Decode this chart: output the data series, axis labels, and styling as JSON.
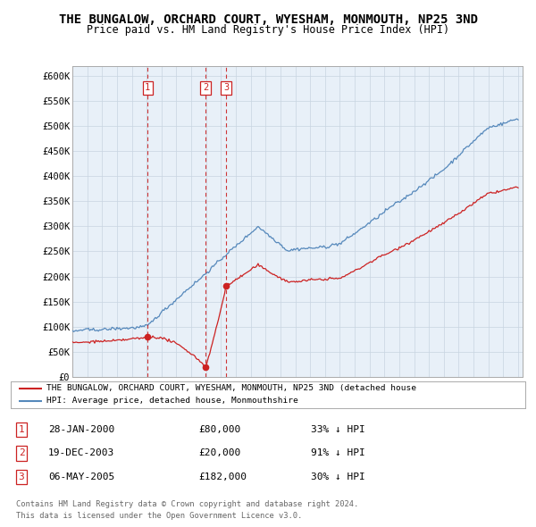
{
  "title": "THE BUNGALOW, ORCHARD COURT, WYESHAM, MONMOUTH, NP25 3ND",
  "subtitle": "Price paid vs. HM Land Registry's House Price Index (HPI)",
  "title_fontsize": 10,
  "subtitle_fontsize": 8.5,
  "ylim": [
    0,
    620000
  ],
  "yticks": [
    0,
    50000,
    100000,
    150000,
    200000,
    250000,
    300000,
    350000,
    400000,
    450000,
    500000,
    550000,
    600000
  ],
  "ytick_labels": [
    "£0",
    "£50K",
    "£100K",
    "£150K",
    "£200K",
    "£250K",
    "£300K",
    "£350K",
    "£400K",
    "£450K",
    "£500K",
    "£550K",
    "£600K"
  ],
  "background_color": "#ffffff",
  "plot_bg_color": "#e8f0f8",
  "grid_color": "#c8d4e0",
  "hpi_color": "#5588bb",
  "price_color": "#cc2222",
  "sale_marker_color": "#cc2222",
  "sale_label_color": "#cc2222",
  "sale_line_color": "#cc2222",
  "transactions": [
    {
      "num": 1,
      "date_label": "28-JAN-2000",
      "date_x": 2000.07,
      "price": 80000,
      "hpi_pct": "33% ↓ HPI"
    },
    {
      "num": 2,
      "date_label": "19-DEC-2003",
      "date_x": 2003.96,
      "price": 20000,
      "hpi_pct": "91% ↓ HPI"
    },
    {
      "num": 3,
      "date_label": "06-MAY-2005",
      "date_x": 2005.35,
      "price": 182000,
      "hpi_pct": "30% ↓ HPI"
    }
  ],
  "legend_line1": "THE BUNGALOW, ORCHARD COURT, WYESHAM, MONMOUTH, NP25 3ND (detached house",
  "legend_line2": "HPI: Average price, detached house, Monmouthshire",
  "footer1": "Contains HM Land Registry data © Crown copyright and database right 2024.",
  "footer2": "This data is licensed under the Open Government Licence v3.0.",
  "xtick_start": 1995,
  "xtick_end": 2025
}
